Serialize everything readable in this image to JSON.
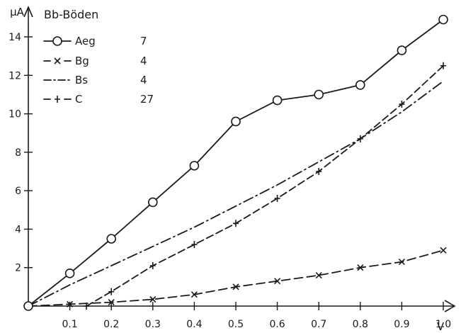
{
  "chart_data": {
    "type": "line",
    "title": "Bb-Böden",
    "xlabel": "V",
    "ylabel": "µA",
    "xlim": [
      0,
      1.05
    ],
    "ylim": [
      0,
      15.5
    ],
    "x_ticks": [
      "0.1",
      "0.2",
      "0.3",
      "0.4",
      "0.5",
      "0.6",
      "0.7",
      "0.8",
      "0.9",
      "1.0"
    ],
    "y_ticks": [
      "2",
      "4",
      "6",
      "8",
      "10",
      "12",
      "14"
    ],
    "grid": false,
    "legend_position": "top-left",
    "series": [
      {
        "name": "Aeg",
        "count": "7",
        "marker": "circle",
        "line_style": "solid",
        "x": [
          0,
          0.1,
          0.2,
          0.3,
          0.4,
          0.5,
          0.6,
          0.7,
          0.8,
          0.9,
          1.0
        ],
        "y": [
          0,
          1.7,
          3.5,
          5.4,
          7.3,
          9.6,
          10.7,
          11.0,
          11.5,
          13.3,
          14.9
        ]
      },
      {
        "name": "Bg",
        "count": "4",
        "marker": "x",
        "line_style": "dashed",
        "x": [
          0,
          0.1,
          0.2,
          0.3,
          0.4,
          0.5,
          0.6,
          0.7,
          0.8,
          0.9,
          1.0
        ],
        "y": [
          0,
          0.1,
          0.2,
          0.35,
          0.6,
          1.0,
          1.3,
          1.6,
          2.0,
          2.3,
          2.9
        ]
      },
      {
        "name": "Bs",
        "count": "4",
        "marker": "none",
        "line_style": "dashdot",
        "x": [
          0,
          0.1,
          0.2,
          0.3,
          0.4,
          0.5,
          0.6,
          0.7,
          0.8,
          0.9,
          1.0
        ],
        "y": [
          0,
          1.1,
          2.1,
          3.1,
          4.1,
          5.2,
          6.3,
          7.5,
          8.7,
          10.1,
          11.7
        ]
      },
      {
        "name": "C",
        "count": "27",
        "marker": "plus",
        "line_style": "dashed-cross",
        "x": [
          0.14,
          0.2,
          0.3,
          0.4,
          0.5,
          0.6,
          0.7,
          0.8,
          0.9,
          1.0
        ],
        "y": [
          0,
          0.75,
          2.1,
          3.2,
          4.3,
          5.6,
          7.0,
          8.7,
          10.5,
          12.5
        ]
      }
    ]
  }
}
